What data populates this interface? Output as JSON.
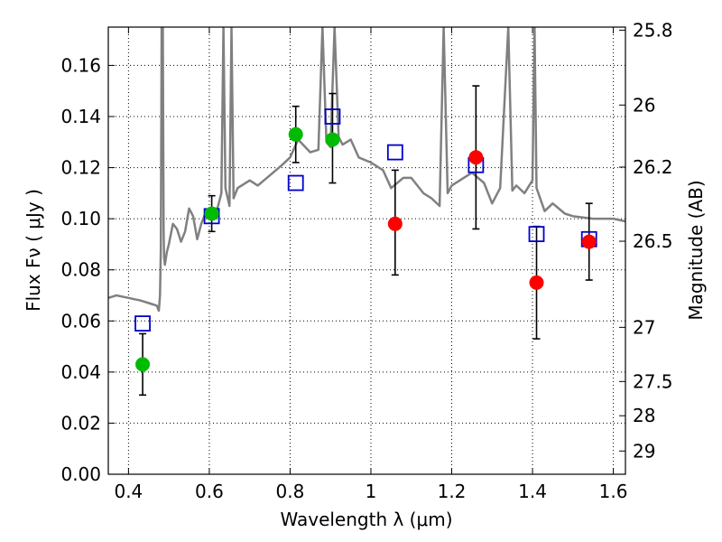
{
  "chart_data": {
    "type": "scatter",
    "title": "",
    "xlabel": "Wavelength  λ (μm)",
    "ylabel": "Flux  Fν  ( μJy )",
    "ylabel_right": "Magnitude (AB)",
    "xlim": [
      0.35,
      1.63
    ],
    "ylim": [
      0.0,
      0.175
    ],
    "grid": true,
    "x_ticks": [
      0.4,
      0.6,
      0.8,
      1.0,
      1.2,
      1.4,
      1.6
    ],
    "x_tick_labels": [
      "0.4",
      "0.6",
      "0.8",
      "1",
      "1.2",
      "1.4",
      "1.6"
    ],
    "y_ticks": [
      0.0,
      0.02,
      0.04,
      0.06,
      0.08,
      0.1,
      0.12,
      0.14,
      0.16
    ],
    "y_tick_labels": [
      "0.00",
      "0.02",
      "0.04",
      "0.06",
      "0.08",
      "0.10",
      "0.12",
      "0.14",
      "0.16"
    ],
    "right_axis": {
      "ticks": [
        {
          "label": "25.8",
          "flux": 0.1738
        },
        {
          "label": "26",
          "flux": 0.1445
        },
        {
          "label": "26.2",
          "flux": 0.1202
        },
        {
          "label": "26.5",
          "flux": 0.0912
        },
        {
          "label": "27",
          "flux": 0.0575
        },
        {
          "label": "27.5",
          "flux": 0.0363
        },
        {
          "label": "28",
          "flux": 0.0229
        },
        {
          "label": "29",
          "flux": 0.0091
        }
      ]
    },
    "series": [
      {
        "name": "",
        "kind": "model_spectrum",
        "color": "#808080",
        "x": [
          0.35,
          0.37,
          0.4,
          0.43,
          0.45,
          0.47,
          0.475,
          0.478,
          0.48,
          0.482,
          0.485,
          0.487,
          0.488,
          0.49,
          0.495,
          0.5,
          0.51,
          0.52,
          0.53,
          0.54,
          0.55,
          0.56,
          0.57,
          0.58,
          0.59,
          0.6,
          0.62,
          0.63,
          0.635,
          0.64,
          0.65,
          0.655,
          0.66,
          0.67,
          0.7,
          0.72,
          0.75,
          0.78,
          0.8,
          0.82,
          0.85,
          0.87,
          0.88,
          0.89,
          0.9,
          0.91,
          0.92,
          0.93,
          0.95,
          0.97,
          1.0,
          1.03,
          1.05,
          1.08,
          1.1,
          1.13,
          1.15,
          1.17,
          1.18,
          1.19,
          1.2,
          1.25,
          1.28,
          1.3,
          1.32,
          1.34,
          1.35,
          1.36,
          1.38,
          1.4,
          1.405,
          1.41,
          1.43,
          1.45,
          1.48,
          1.5,
          1.55,
          1.6,
          1.63
        ],
        "values": [
          0.069,
          0.07,
          0.069,
          0.068,
          0.067,
          0.066,
          0.064,
          0.07,
          0.088,
          0.175,
          0.175,
          0.095,
          0.085,
          0.082,
          0.087,
          0.09,
          0.098,
          0.096,
          0.091,
          0.095,
          0.104,
          0.101,
          0.092,
          0.098,
          0.102,
          0.104,
          0.104,
          0.11,
          0.175,
          0.112,
          0.105,
          0.175,
          0.108,
          0.112,
          0.115,
          0.113,
          0.117,
          0.121,
          0.124,
          0.131,
          0.126,
          0.127,
          0.175,
          0.13,
          0.128,
          0.175,
          0.132,
          0.129,
          0.131,
          0.124,
          0.122,
          0.119,
          0.112,
          0.116,
          0.116,
          0.11,
          0.108,
          0.105,
          0.175,
          0.11,
          0.113,
          0.118,
          0.114,
          0.106,
          0.112,
          0.175,
          0.111,
          0.113,
          0.11,
          0.115,
          0.175,
          0.112,
          0.103,
          0.106,
          0.102,
          0.101,
          0.1,
          0.1,
          0.099
        ]
      },
      {
        "name": "",
        "kind": "model_photometry",
        "marker": "open-square",
        "color": "#0000cc",
        "x": [
          0.435,
          0.606,
          0.814,
          0.905,
          1.06,
          1.26,
          1.41,
          1.54
        ],
        "values": [
          0.059,
          0.101,
          0.114,
          0.14,
          0.126,
          0.121,
          0.094,
          0.092
        ]
      },
      {
        "name": "",
        "kind": "observed_optical",
        "marker": "filled-circle",
        "color": "#00bb00",
        "x": [
          0.435,
          0.606,
          0.814,
          0.905
        ],
        "values": [
          0.043,
          0.102,
          0.133,
          0.131
        ],
        "err_low": [
          0.012,
          0.007,
          0.011,
          0.017
        ],
        "err_high": [
          0.012,
          0.007,
          0.011,
          0.018
        ]
      },
      {
        "name": "",
        "kind": "observed_infrared",
        "marker": "filled-circle",
        "color": "#ff0000",
        "x": [
          1.06,
          1.26,
          1.41,
          1.54
        ],
        "values": [
          0.098,
          0.124,
          0.075,
          0.091
        ],
        "err_low": [
          0.02,
          0.028,
          0.022,
          0.015
        ],
        "err_high": [
          0.021,
          0.028,
          0.022,
          0.015
        ]
      }
    ]
  }
}
